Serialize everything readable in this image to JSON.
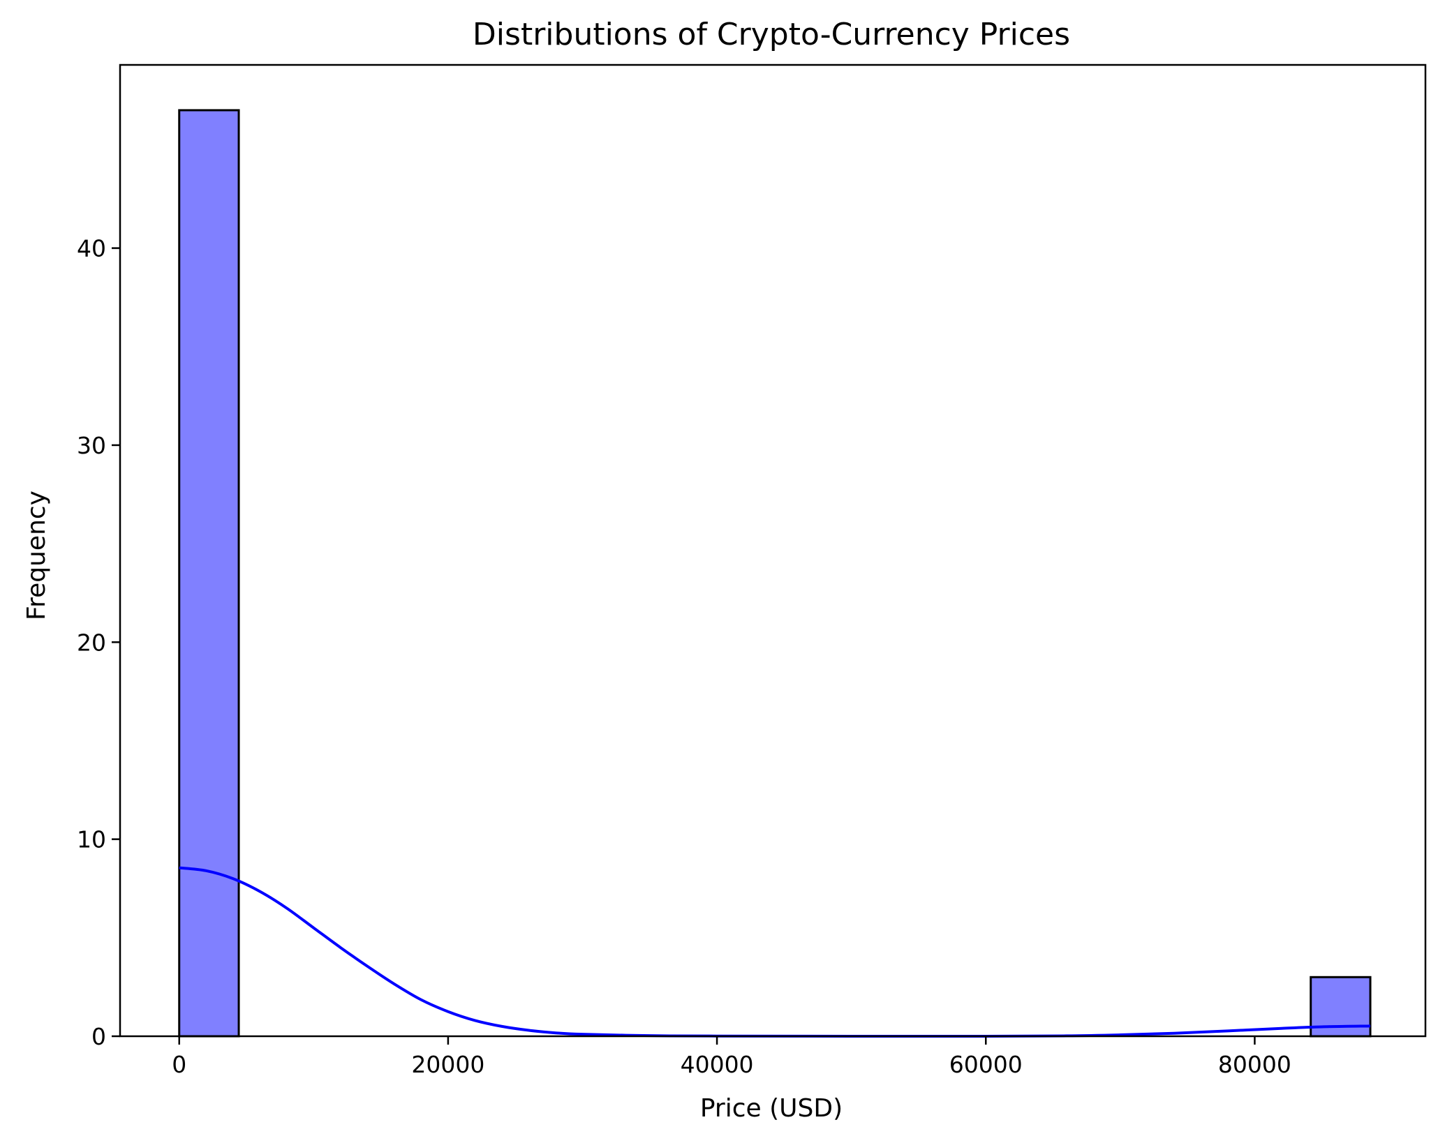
{
  "chart_data": {
    "type": "bar",
    "title": "Distributions of Crypto-Currency Prices",
    "xlabel": "Price (USD)",
    "ylabel": "Frequency",
    "xlim": [
      -4400,
      92700
    ],
    "ylim": [
      0,
      49.3
    ],
    "xticks": [
      0,
      20000,
      40000,
      60000,
      80000
    ],
    "yticks": [
      0,
      10,
      20,
      30,
      40
    ],
    "grid": false,
    "legend": "none",
    "bar_color": "#8080ff",
    "bar_edge_color": "#000000",
    "kde_color": "#0000ff",
    "bins": [
      {
        "x0": 0,
        "x1": 4430,
        "count": 47
      },
      {
        "x0": 84170,
        "x1": 88600,
        "count": 3
      }
    ],
    "kde": {
      "x": [
        0,
        2000,
        4000,
        6000,
        8000,
        10000,
        12000,
        14000,
        16000,
        18000,
        20000,
        22000,
        24000,
        26000,
        28000,
        30000,
        35000,
        40000,
        50000,
        60000,
        66000,
        70000,
        74000,
        78000,
        82000,
        85000,
        88600
      ],
      "y": [
        8.55,
        8.4,
        8.0,
        7.35,
        6.5,
        5.5,
        4.5,
        3.55,
        2.65,
        1.85,
        1.25,
        0.8,
        0.5,
        0.3,
        0.17,
        0.1,
        0.03,
        0.01,
        0.0,
        0.0,
        0.02,
        0.07,
        0.15,
        0.27,
        0.4,
        0.48,
        0.52
      ]
    }
  }
}
